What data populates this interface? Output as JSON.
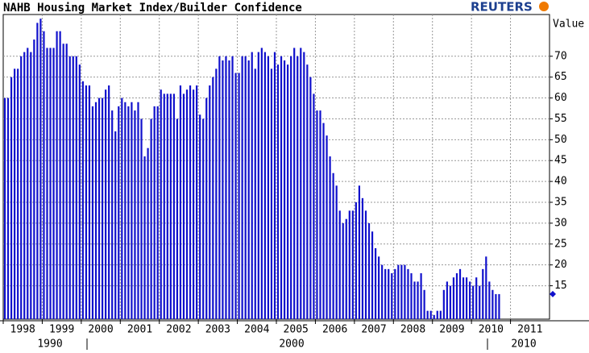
{
  "chart_data": {
    "type": "bar",
    "title": "NAHB Housing Market Index/Builder Confidence",
    "brand": "REUTERS",
    "y_axis_label": "Value",
    "color": "#1010cc",
    "ylim": [
      7,
      80
    ],
    "yticks": [
      15,
      20,
      25,
      30,
      35,
      40,
      45,
      50,
      55,
      60,
      65,
      70
    ],
    "grid": true,
    "last_value": 13,
    "decade_labels": [
      "1990",
      "2000",
      "2010"
    ],
    "categories": [
      "1998",
      null,
      null,
      null,
      null,
      null,
      null,
      null,
      null,
      null,
      null,
      null,
      "1999",
      null,
      null,
      null,
      null,
      null,
      null,
      null,
      null,
      null,
      null,
      null,
      "2000",
      null,
      null,
      null,
      null,
      null,
      null,
      null,
      null,
      null,
      null,
      null,
      "2001",
      null,
      null,
      null,
      null,
      null,
      null,
      null,
      null,
      null,
      null,
      null,
      "2002",
      null,
      null,
      null,
      null,
      null,
      null,
      null,
      null,
      null,
      null,
      null,
      "2003",
      null,
      null,
      null,
      null,
      null,
      null,
      null,
      null,
      null,
      null,
      null,
      "2004",
      null,
      null,
      null,
      null,
      null,
      null,
      null,
      null,
      null,
      null,
      null,
      "2005",
      null,
      null,
      null,
      null,
      null,
      null,
      null,
      null,
      null,
      null,
      null,
      "2006",
      null,
      null,
      null,
      null,
      null,
      null,
      null,
      null,
      null,
      null,
      null,
      "2007",
      null,
      null,
      null,
      null,
      null,
      null,
      null,
      null,
      null,
      null,
      null,
      "2008",
      null,
      null,
      null,
      null,
      null,
      null,
      null,
      null,
      null,
      null,
      null,
      "2009",
      null,
      null,
      null,
      null,
      null,
      null,
      null,
      null,
      null,
      null,
      null,
      "2010",
      null,
      null,
      null,
      null,
      null,
      null,
      null,
      null,
      null,
      null,
      null,
      "2011",
      null,
      null,
      null,
      null,
      null,
      null,
      null,
      null,
      null,
      null,
      null
    ],
    "values": [
      60,
      60,
      65,
      67,
      67,
      70,
      71,
      72,
      71,
      74,
      78,
      79,
      76,
      72,
      72,
      72,
      76,
      76,
      73,
      73,
      70,
      70,
      70,
      68,
      64,
      63,
      63,
      58,
      59,
      60,
      60,
      62,
      63,
      57,
      52,
      58,
      60,
      59,
      58,
      59,
      57,
      59,
      55,
      46,
      48,
      55,
      58,
      58,
      62,
      61,
      61,
      61,
      61,
      55,
      63,
      61,
      62,
      63,
      62,
      63,
      56,
      55,
      60,
      63,
      65,
      67,
      70,
      69,
      70,
      69,
      70,
      66,
      66,
      70,
      70,
      69,
      71,
      67,
      71,
      72,
      71,
      70,
      67,
      71,
      68,
      70,
      69,
      68,
      70,
      72,
      70,
      72,
      71,
      68,
      65,
      61,
      57,
      57,
      54,
      51,
      46,
      42,
      39,
      33,
      30,
      31,
      33,
      33,
      35,
      39,
      36,
      33,
      30,
      28,
      24,
      22,
      20,
      19,
      19,
      18,
      19,
      20,
      20,
      20,
      19,
      18,
      16,
      16,
      18,
      14,
      9,
      9,
      8,
      9,
      9,
      14,
      16,
      15,
      17,
      18,
      19,
      17,
      17,
      16,
      15,
      17,
      15,
      19,
      22,
      16,
      14,
      13,
      13,
      null,
      null,
      null,
      null,
      null,
      null,
      null,
      null,
      null,
      null,
      null,
      null,
      null,
      null,
      null
    ]
  }
}
